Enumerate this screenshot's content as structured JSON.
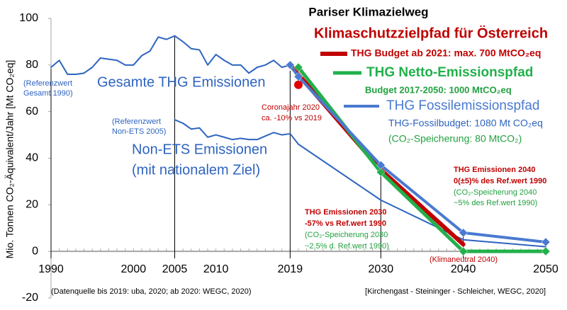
{
  "chart_data": {
    "type": "line",
    "title": "Pariser Klimazielweg",
    "subtitle": "Klimaschutzzielpfad für Österreich",
    "y_label": "Mio. Tonnen CO₂-Äquivalent/Jahr [Mt CO₂eq]",
    "xlim": [
      1990,
      2050
    ],
    "xticks": [
      1990,
      2000,
      2005,
      2010,
      2019,
      2030,
      2040,
      2050
    ],
    "ylim": [
      -20,
      100
    ],
    "yticks": [
      -20,
      0,
      20,
      40,
      60,
      80,
      100
    ],
    "series": [
      {
        "color": "#2e64c0",
        "width": 2,
        "x": [
          1990,
          1991,
          1992,
          1993,
          1994,
          1995,
          1996,
          1997,
          1998,
          1999,
          2000,
          2001,
          2002,
          2003,
          2004,
          2005,
          2006,
          2007,
          2008,
          2009,
          2010,
          2011,
          2012,
          2013,
          2014,
          2015,
          2016,
          2017,
          2018,
          2019
        ],
        "values": [
          79,
          82,
          76,
          76,
          76.5,
          79,
          83,
          82.5,
          82,
          80,
          80,
          84,
          86,
          92,
          91,
          92.5,
          90,
          87,
          86.5,
          80,
          84.5,
          82,
          80,
          80,
          76.5,
          79,
          80,
          82,
          79,
          80
        ]
      },
      {
        "color": "#2e64c0",
        "width": 2,
        "x": [
          2005,
          2006,
          2007,
          2008,
          2009,
          2010,
          2011,
          2012,
          2013,
          2014,
          2015,
          2016,
          2017,
          2018,
          2019,
          2020,
          2030,
          2040,
          2050
        ],
        "values": [
          56.5,
          55,
          52.5,
          53,
          49,
          50,
          49,
          48,
          48.5,
          48,
          48,
          49.5,
          51,
          50,
          50.5,
          46,
          22,
          5,
          2
        ]
      },
      {
        "name": "THG Budget ab 2021: max. 700 MtCO₂eq",
        "color": "#c00000",
        "width": 6,
        "x": [
          2019,
          2030,
          2040
        ],
        "values": [
          80,
          35,
          3
        ]
      },
      {
        "name": "THG Netto-Emissionspfad",
        "color": "#22b04b",
        "width": 5,
        "markers": true,
        "x": [
          2020,
          2030,
          2040,
          2050
        ],
        "values": [
          79,
          34,
          0,
          0
        ]
      },
      {
        "name": "THG Fossilemissionspfad",
        "color": "#4a7ad0",
        "width": 4,
        "markers": true,
        "x": [
          2019,
          2020,
          2030,
          2040,
          2050
        ],
        "values": [
          80,
          75,
          37,
          8,
          4
        ]
      },
      {
        "color": "#e00000",
        "point": true,
        "x": [
          2020
        ],
        "values": [
          71.5
        ]
      }
    ],
    "annotations": [
      {
        "lines": [
          "(Referenzwert",
          "Gesamt 1990)"
        ],
        "color": "#2e64c0"
      },
      {
        "lines": [
          "Gesamte THG Emissionen"
        ],
        "color": "#2e64c0"
      },
      {
        "lines": [
          "(Referenzwert",
          "Non-ETS 2005)"
        ],
        "color": "#2e64c0"
      },
      {
        "lines": [
          "Non-ETS Emissionen",
          "(mit nationalem Ziel)"
        ],
        "color": "#2e64c0"
      },
      {
        "lines": [
          "Coronajahr 2020",
          "ca. -10% vs 2019"
        ],
        "color": "#c00000"
      },
      {
        "lines": [
          "THG Emissionen 2030",
          "-57% vs Ref.wert 1990"
        ],
        "color": "#c00000"
      },
      {
        "lines": [
          "(CO₂-Speicherung 2030",
          "~2.5% d. Ref.wert 1990)"
        ],
        "color": "#22a040"
      },
      {
        "lines": [
          "THG Emissionen 2040",
          "0(±5)% des Ref.wert 1990"
        ],
        "color": "#c00000"
      },
      {
        "lines": [
          "(CO₂-Speicherung 2040",
          "~5% des Ref.wert 1990)"
        ],
        "color": "#22a040"
      },
      {
        "lines": [
          "(Klimaneutral 2040)"
        ],
        "color": "#c00000"
      },
      {
        "lines": [
          "Budget 2017-2050: 1000 MtCO₂eq"
        ],
        "color": "#22a040"
      },
      {
        "lines": [
          "THG-Fossilbudget: 1080 Mt CO₂eq"
        ],
        "color": "#2e64c0"
      },
      {
        "lines": [
          "(CO₂-Speicherung: 80 MtCO₂)"
        ],
        "color": "#22a040"
      }
    ],
    "footnotes": [
      "(Datenquelle bis 2019: uba, 2020; ab 2020: WEGC, 2020)",
      "[Kirchengast - Steininger - Schleicher, WEGC, 2020]"
    ]
  }
}
